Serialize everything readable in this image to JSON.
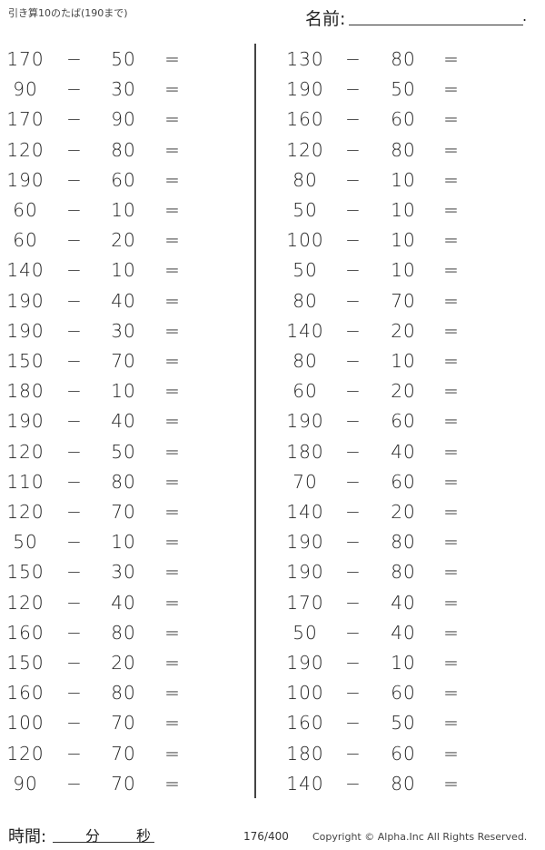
{
  "header": {
    "title": "引き算10のたば(190まで)",
    "name_label": "名前:",
    "name_end": "."
  },
  "operator": "−",
  "equals": "=",
  "left_problems": [
    [
      "170",
      "50"
    ],
    [
      "90",
      "30"
    ],
    [
      "170",
      "90"
    ],
    [
      "120",
      "80"
    ],
    [
      "190",
      "60"
    ],
    [
      "60",
      "10"
    ],
    [
      "60",
      "20"
    ],
    [
      "140",
      "10"
    ],
    [
      "190",
      "40"
    ],
    [
      "190",
      "30"
    ],
    [
      "150",
      "70"
    ],
    [
      "180",
      "10"
    ],
    [
      "190",
      "40"
    ],
    [
      "120",
      "50"
    ],
    [
      "110",
      "80"
    ],
    [
      "120",
      "70"
    ],
    [
      "50",
      "10"
    ],
    [
      "150",
      "30"
    ],
    [
      "120",
      "40"
    ],
    [
      "160",
      "80"
    ],
    [
      "150",
      "20"
    ],
    [
      "160",
      "80"
    ],
    [
      "100",
      "70"
    ],
    [
      "120",
      "70"
    ],
    [
      "90",
      "70"
    ]
  ],
  "right_problems": [
    [
      "130",
      "80"
    ],
    [
      "190",
      "50"
    ],
    [
      "160",
      "60"
    ],
    [
      "120",
      "80"
    ],
    [
      "80",
      "10"
    ],
    [
      "50",
      "10"
    ],
    [
      "100",
      "10"
    ],
    [
      "50",
      "10"
    ],
    [
      "80",
      "70"
    ],
    [
      "140",
      "20"
    ],
    [
      "80",
      "10"
    ],
    [
      "60",
      "20"
    ],
    [
      "190",
      "60"
    ],
    [
      "180",
      "40"
    ],
    [
      "70",
      "60"
    ],
    [
      "140",
      "20"
    ],
    [
      "190",
      "80"
    ],
    [
      "190",
      "80"
    ],
    [
      "170",
      "40"
    ],
    [
      "50",
      "40"
    ],
    [
      "190",
      "10"
    ],
    [
      "100",
      "60"
    ],
    [
      "160",
      "50"
    ],
    [
      "180",
      "60"
    ],
    [
      "140",
      "80"
    ]
  ],
  "footer": {
    "time_label": "時間:",
    "minutes": "分",
    "seconds": "秒",
    "page": "176/400",
    "copyright": "Copyright ©  Alpha.Inc All Rights Reserved."
  }
}
